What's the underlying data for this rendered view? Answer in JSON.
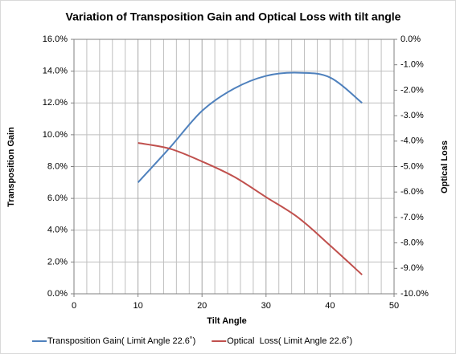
{
  "chart_data": {
    "type": "line",
    "title": "Variation of Transposition Gain and Optical Loss with tilt angle",
    "x_label": "Tilt Angle",
    "y_label": "Transposition Gain",
    "y2_label": "Optical Loss",
    "x": [
      10,
      15,
      20,
      25,
      30,
      35,
      40,
      45
    ],
    "series": [
      {
        "name": "Transposition Gain( Limit Angle 22.6˚)",
        "color": "#4f81bd",
        "values": [
          7.0,
          9.2,
          11.5,
          12.9,
          13.7,
          13.9,
          13.6,
          12.0
        ]
      },
      {
        "name": "Optical  Loss( Limit Angle 22.6˚)",
        "color": "#c0504d",
        "axis": "y2",
        "values": [
          -4.07,
          -4.3,
          -4.8,
          -5.4,
          -6.2,
          -7.0,
          -8.1,
          -9.25
        ]
      }
    ],
    "xlim": [
      0,
      50
    ],
    "xticks": [
      0,
      10,
      20,
      30,
      40,
      50
    ],
    "ylim": [
      0,
      16
    ],
    "yticks": [
      {
        "value": 0,
        "label": "0.0%"
      },
      {
        "value": 2,
        "label": "2.0%"
      },
      {
        "value": 4,
        "label": "4.0%"
      },
      {
        "value": 6,
        "label": "6.0%"
      },
      {
        "value": 8,
        "label": "8.0%"
      },
      {
        "value": 10,
        "label": "10.0%"
      },
      {
        "value": 12,
        "label": "12.0%"
      },
      {
        "value": 14,
        "label": "14.0%"
      },
      {
        "value": 16,
        "label": "16.0%"
      }
    ],
    "y2lim": [
      -10,
      0
    ],
    "y2ticks": [
      {
        "value": 0,
        "label": "0.0%"
      },
      {
        "value": -1,
        "label": "-1.0%"
      },
      {
        "value": -2,
        "label": "-2.0%"
      },
      {
        "value": -3,
        "label": "-3.0%"
      },
      {
        "value": -4,
        "label": "-4.0%"
      },
      {
        "value": -5,
        "label": "-5.0%"
      },
      {
        "value": -6,
        "label": "-6.0%"
      },
      {
        "value": -7,
        "label": "-7.0%"
      },
      {
        "value": -8,
        "label": "-8.0%"
      },
      {
        "value": -9,
        "label": "-9.0%"
      },
      {
        "value": -10,
        "label": "-10.0%"
      }
    ],
    "grid": true,
    "legend": "bottom"
  }
}
